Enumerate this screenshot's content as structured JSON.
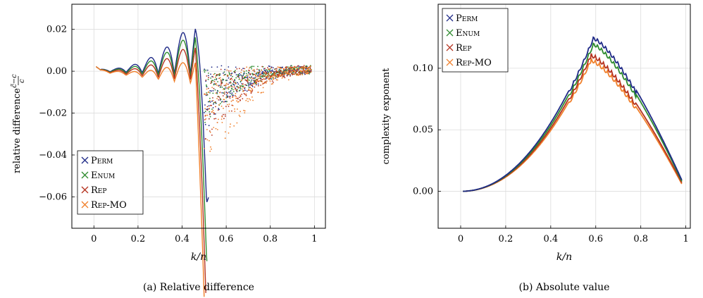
{
  "colors": {
    "perm": "#1f2a87",
    "enum": "#2e8b2e",
    "rep": "#b5321f",
    "repmo": "#f07f2a",
    "grid": "#dcdcdc"
  },
  "chart_data": [
    {
      "type": "scatter",
      "caption": "(a) Relative difference",
      "xlabel": "k/n",
      "ylabel": "relative difference",
      "ylabel_fraction": {
        "numerator": "c̃−c",
        "denominator": "c"
      },
      "xlim": [
        -0.1,
        1.05
      ],
      "ylim": [
        -0.075,
        0.032
      ],
      "xticks": [
        0,
        0.2,
        0.4,
        0.6,
        0.8,
        1
      ],
      "xtick_labels": [
        "0",
        "0.2",
        "0.4",
        "0.6",
        "0.8",
        "1"
      ],
      "yticks": [
        -0.06,
        -0.04,
        -0.02,
        0,
        0.02
      ],
      "ytick_labels": [
        "−0.06",
        "−0.04",
        "−0.02",
        "0.00",
        "0.02"
      ],
      "grid": true,
      "legend_position": "bottom-left",
      "series": [
        {
          "name": "Perm",
          "peak": 0.0245,
          "drop": -0.035
        },
        {
          "name": "Enum",
          "peak": 0.0215,
          "drop": -0.03
        },
        {
          "name": "Rep",
          "peak": 0.0175,
          "drop": -0.045
        },
        {
          "name": "Rep-MO",
          "peak": 0.011,
          "drop": -0.066
        }
      ]
    },
    {
      "type": "line",
      "caption": "(b) Absolute value",
      "xlabel": "k/n",
      "ylabel": "complexity exponent",
      "xlim": [
        -0.1,
        1.02
      ],
      "ylim": [
        -0.03,
        0.152
      ],
      "xticks": [
        0,
        0.2,
        0.4,
        0.6,
        0.8,
        1
      ],
      "xtick_labels": [
        "0",
        "0.2",
        "0.4",
        "0.6",
        "0.8",
        "1"
      ],
      "yticks": [
        0,
        0.05,
        0.1
      ],
      "ytick_labels": [
        "0.00",
        "0.05",
        "0.10"
      ],
      "grid": true,
      "legend_position": "top-left",
      "series": [
        {
          "name": "Perm",
          "peak_x": 0.59,
          "peak_y": 0.126,
          "end_y": 0.008
        },
        {
          "name": "Enum",
          "peak_x": 0.59,
          "peak_y": 0.121,
          "end_y": 0.007
        },
        {
          "name": "Rep",
          "peak_x": 0.58,
          "peak_y": 0.112,
          "end_y": 0.006
        },
        {
          "name": "Rep-MO",
          "peak_x": 0.58,
          "peak_y": 0.108,
          "end_y": 0.005
        }
      ]
    }
  ]
}
